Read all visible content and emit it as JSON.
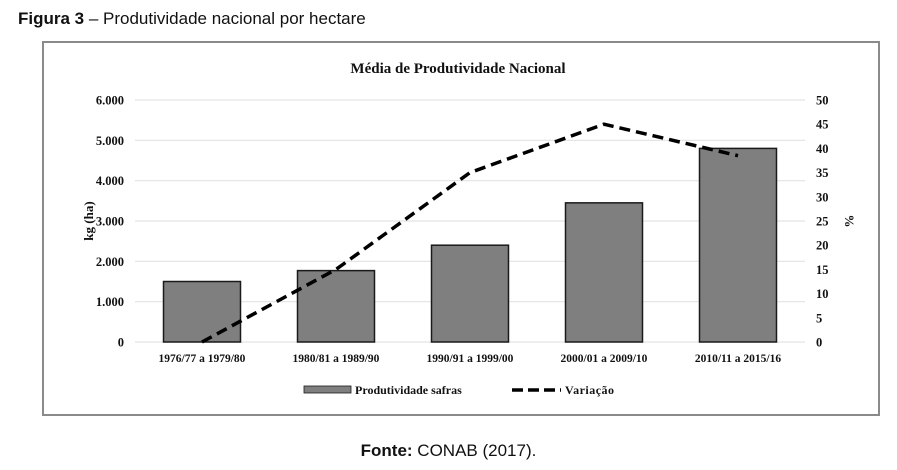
{
  "figure": {
    "label": "Figura 3",
    "caption": " – Produtividade nacional por hectare"
  },
  "source": {
    "label": "Fonte:",
    "text": " CONAB (2017)."
  },
  "colors": {
    "bar_fill": "#7f7f7f",
    "bar_stroke": "#1a1a1a",
    "line": "#000000",
    "grid": "#e3e3e3",
    "frame": "#8a8a8a"
  },
  "chart_data": {
    "type": "bar",
    "title": "Média de Produtividade Nacional",
    "categories": [
      "1976/77 a 1979/80",
      "1980/81 a 1989/90",
      "1990/91 a 1999/00",
      "2000/01 a 2009/10",
      "2010/11 a 2015/16"
    ],
    "series": [
      {
        "name": "Produtividade safras",
        "type": "bar",
        "axis": "left",
        "values": [
          1500,
          1770,
          2400,
          3450,
          4800
        ]
      },
      {
        "name": "Variação",
        "type": "line",
        "style": "dashed",
        "axis": "right",
        "values": [
          0,
          15,
          35,
          45,
          38.5
        ]
      }
    ],
    "ylabel": "kg (ha)",
    "y2label": "%",
    "xlabel": "",
    "ylim": [
      0,
      6000
    ],
    "y2lim": [
      0,
      50
    ],
    "yticks": [
      "0",
      "1.000",
      "2.000",
      "3.000",
      "4.000",
      "5.000",
      "6.000"
    ],
    "ytick_values": [
      0,
      1000,
      2000,
      3000,
      4000,
      5000,
      6000
    ],
    "y2ticks": [
      "0",
      "5",
      "10",
      "15",
      "20",
      "25",
      "30",
      "35",
      "40",
      "45",
      "50"
    ],
    "y2tick_values": [
      0,
      5,
      10,
      15,
      20,
      25,
      30,
      35,
      40,
      45,
      50
    ],
    "grid": true,
    "legend": {
      "placement": "bottom",
      "entries": [
        "Produtividade safras",
        "Variação"
      ]
    }
  }
}
